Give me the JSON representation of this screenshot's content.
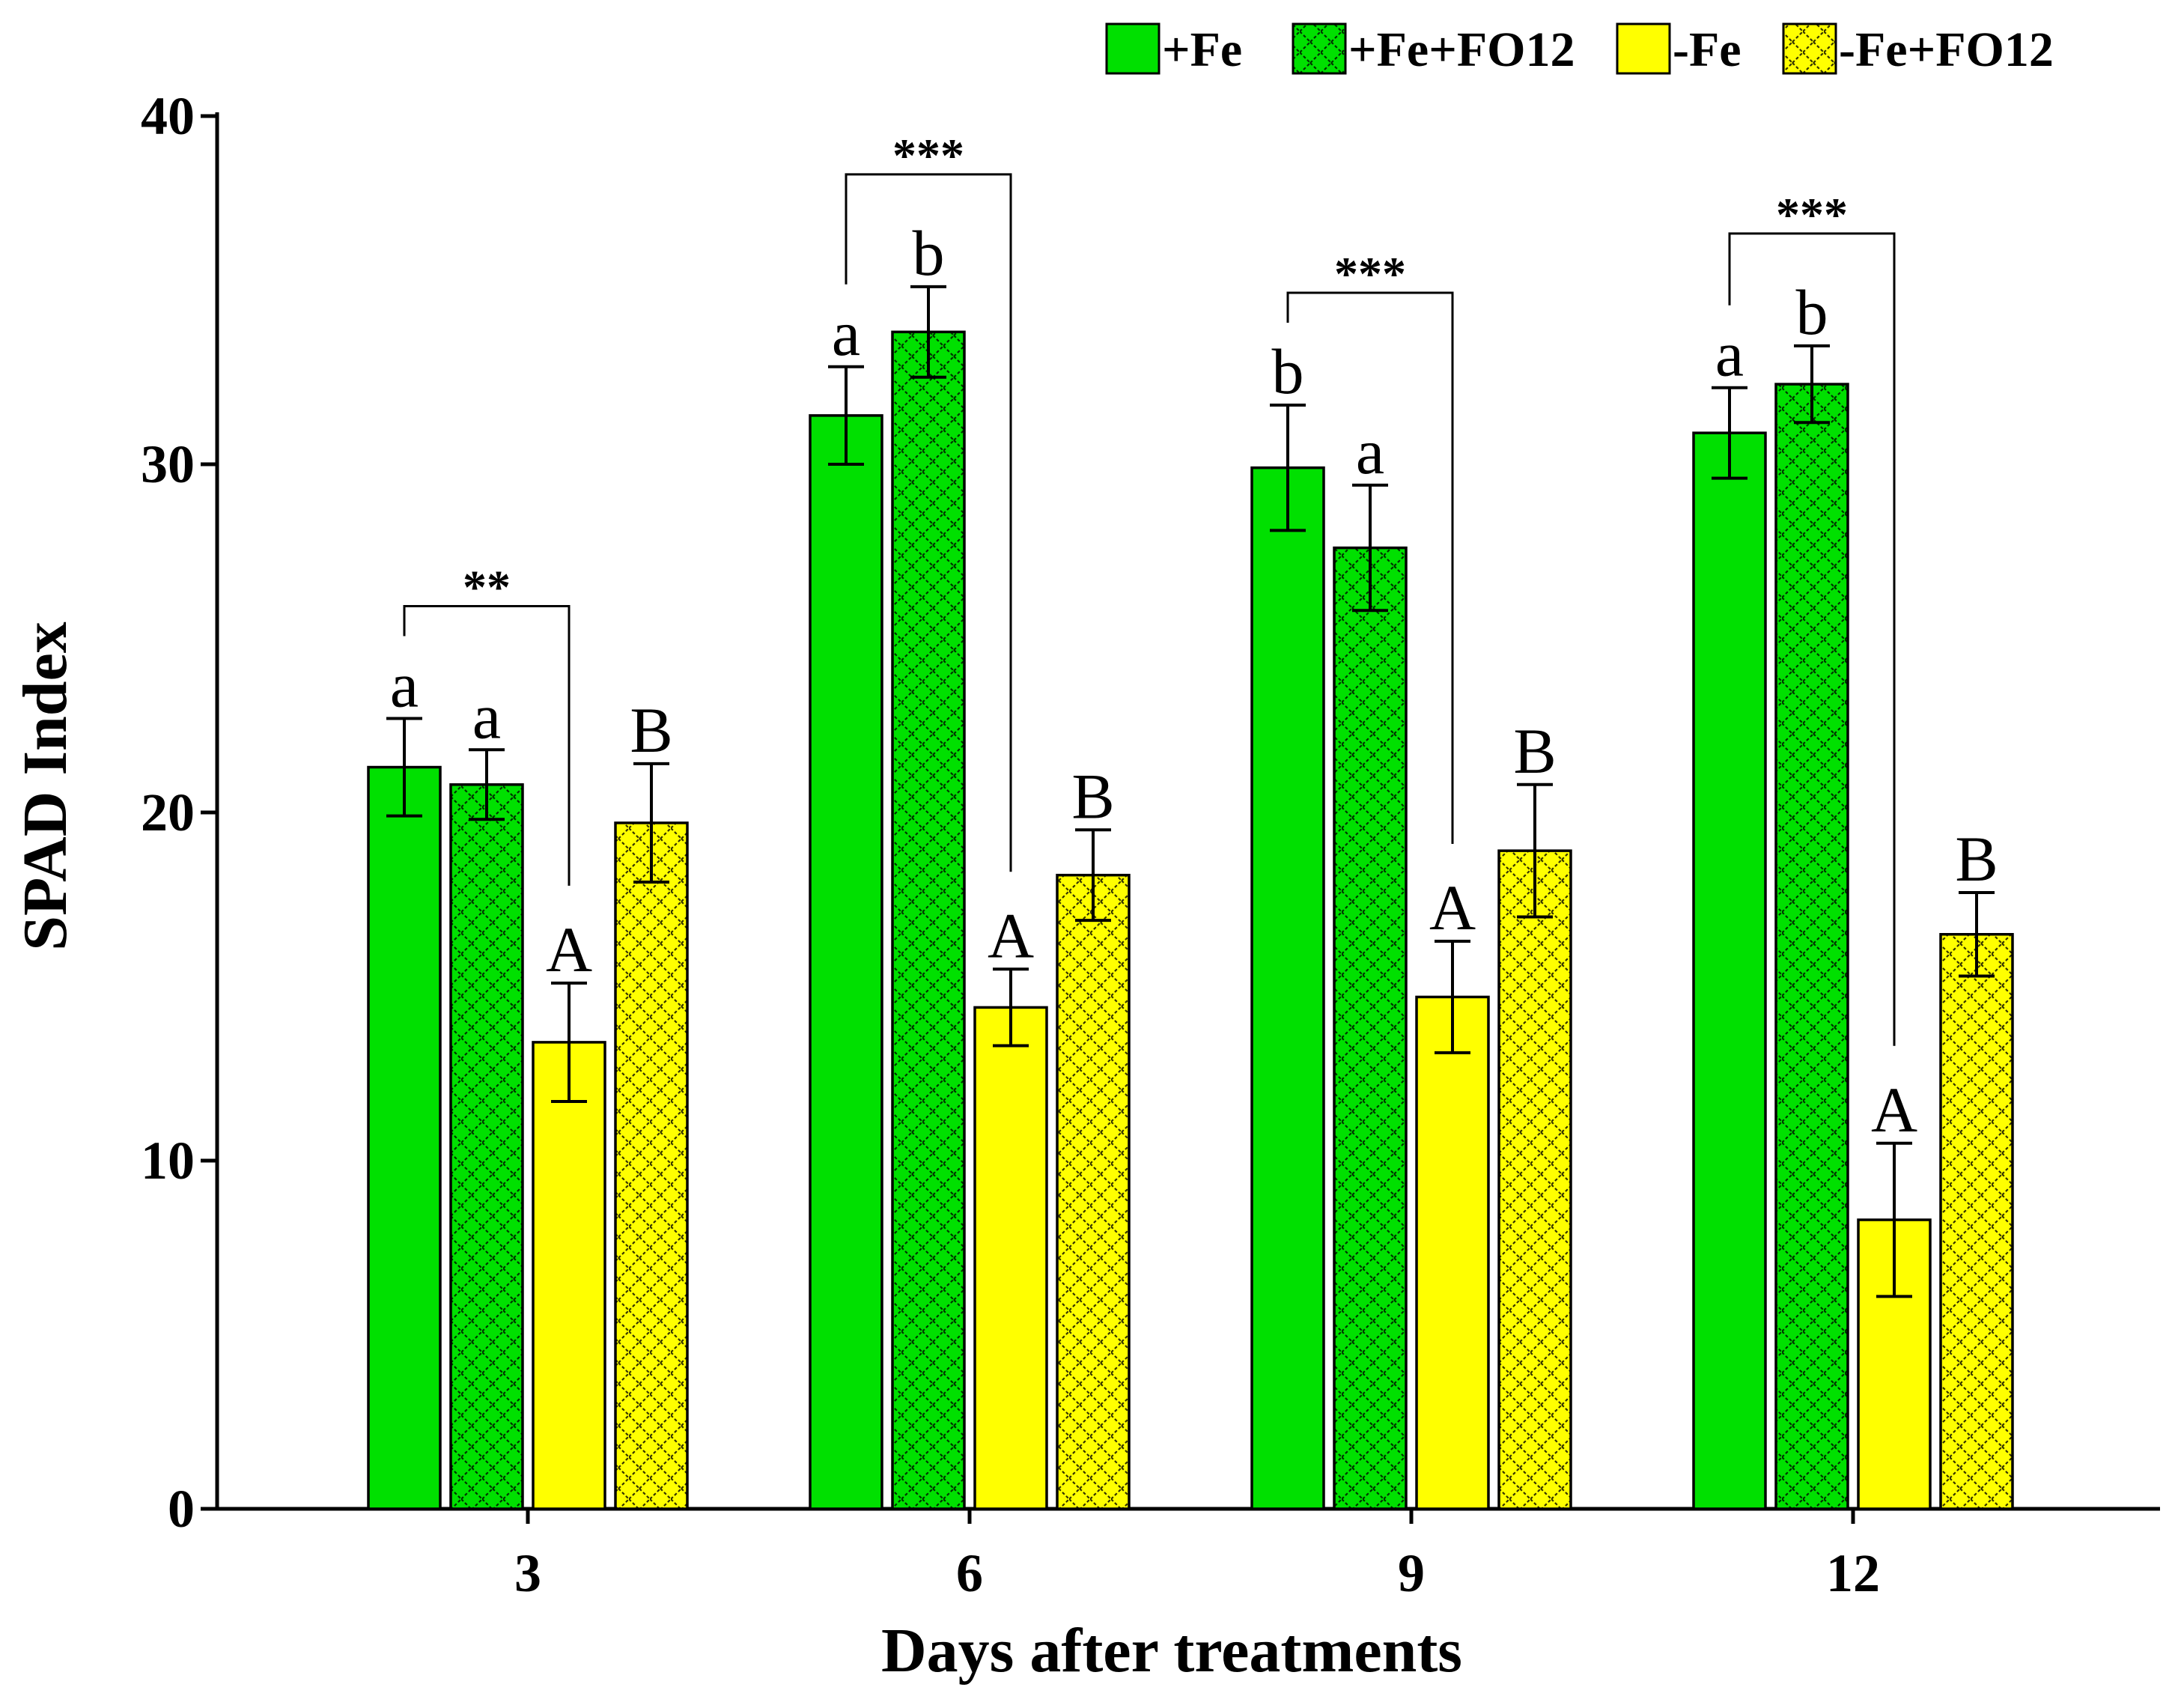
{
  "chart_data": {
    "type": "bar",
    "title": "",
    "xlabel": "Days after treatments",
    "ylabel": "SPAD Index",
    "ylim": [
      0,
      40
    ],
    "yticks": [
      0,
      10,
      20,
      30,
      40
    ],
    "categories": [
      "3",
      "6",
      "9",
      "12"
    ],
    "legend_position": "top-right",
    "series": [
      {
        "name": "+Fe",
        "color": "#00e000",
        "pattern": "none",
        "values": [
          21.3,
          31.4,
          29.9,
          30.9
        ],
        "errors": [
          1.4,
          1.4,
          1.8,
          1.3
        ],
        "letters": [
          "a",
          "a",
          "b",
          "a"
        ]
      },
      {
        "name": "+Fe+FO12",
        "color": "#00e000",
        "pattern": "crosshatch",
        "values": [
          20.8,
          33.8,
          27.6,
          32.3
        ],
        "errors": [
          1.0,
          1.3,
          1.8,
          1.1
        ],
        "letters": [
          "a",
          "b",
          "a",
          "b"
        ]
      },
      {
        "name": "-Fe",
        "color": "#ffff00",
        "pattern": "none",
        "values": [
          13.4,
          14.4,
          14.7,
          8.3
        ],
        "errors": [
          1.7,
          1.1,
          1.6,
          2.2
        ],
        "letters": [
          "A",
          "A",
          "A",
          "A"
        ]
      },
      {
        "name": "-Fe+FO12",
        "color": "#ffff00",
        "pattern": "crosshatch",
        "values": [
          19.7,
          18.2,
          18.9,
          16.5
        ],
        "errors": [
          1.7,
          1.3,
          1.9,
          1.2
        ],
        "letters": [
          "B",
          "B",
          "B",
          "B"
        ]
      }
    ],
    "significance": [
      {
        "category": "3",
        "from": "+Fe",
        "to": "-Fe",
        "label": "**"
      },
      {
        "category": "6",
        "from": "+Fe",
        "to": "-Fe",
        "label": "***"
      },
      {
        "category": "9",
        "from": "+Fe",
        "to": "-Fe",
        "label": "***"
      },
      {
        "category": "12",
        "from": "+Fe",
        "to": "-Fe",
        "label": "***"
      }
    ]
  }
}
